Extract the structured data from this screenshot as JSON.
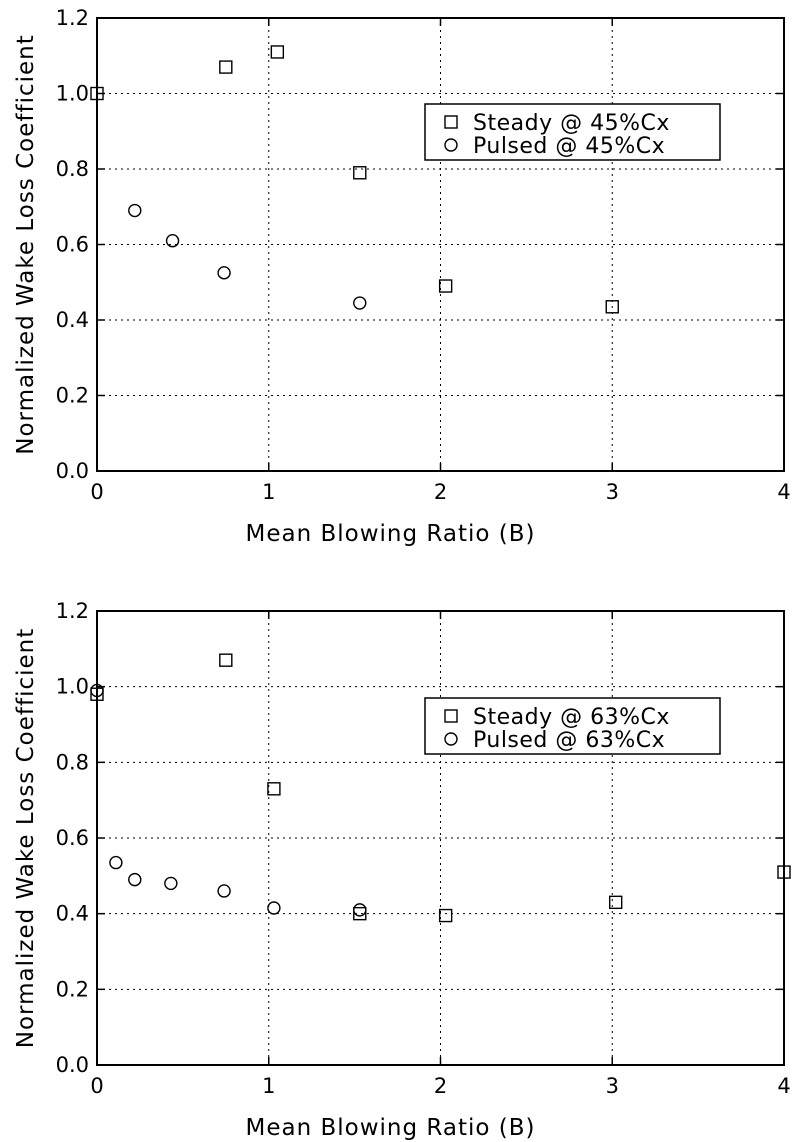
{
  "chart_data": [
    {
      "type": "scatter",
      "xlabel": "Mean Blowing Ratio (B)",
      "ylabel": "Normalized Wake Loss Coefficient",
      "xlim": [
        0,
        4
      ],
      "ylim": [
        0,
        1.2
      ],
      "xticks": [
        "0",
        "1",
        "2",
        "3",
        "4"
      ],
      "yticks": [
        "0.0",
        "0.2",
        "0.4",
        "0.6",
        "0.8",
        "1.0",
        "1.2"
      ],
      "grid": true,
      "legend_position": "top-right",
      "series": [
        {
          "name": "Steady @ 45%Cx",
          "marker": "square",
          "x": [
            0.0,
            0.75,
            1.05,
            1.53,
            2.03,
            3.0
          ],
          "y": [
            1.0,
            1.07,
            1.11,
            0.79,
            0.49,
            0.435
          ]
        },
        {
          "name": "Pulsed @ 45%Cx",
          "marker": "circle",
          "x": [
            0.22,
            0.44,
            0.74,
            1.53
          ],
          "y": [
            0.69,
            0.61,
            0.525,
            0.445
          ]
        }
      ]
    },
    {
      "type": "scatter",
      "xlabel": "Mean Blowing Ratio (B)",
      "ylabel": "Normalized Wake Loss Coefficient",
      "xlim": [
        0,
        4
      ],
      "ylim": [
        0,
        1.2
      ],
      "xticks": [
        "0",
        "1",
        "2",
        "3",
        "4"
      ],
      "yticks": [
        "0.0",
        "0.2",
        "0.4",
        "0.6",
        "0.8",
        "1.0",
        "1.2"
      ],
      "grid": true,
      "legend_position": "top-right",
      "series": [
        {
          "name": "Steady @ 63%Cx",
          "marker": "square",
          "x": [
            0.0,
            0.75,
            1.03,
            1.53,
            2.03,
            3.02,
            4.0
          ],
          "y": [
            0.98,
            1.07,
            0.73,
            0.4,
            0.395,
            0.43,
            0.51
          ]
        },
        {
          "name": "Pulsed @ 63%Cx",
          "marker": "circle",
          "x": [
            0.0,
            0.11,
            0.22,
            0.43,
            0.74,
            1.03,
            1.53
          ],
          "y": [
            0.99,
            0.535,
            0.49,
            0.48,
            0.46,
            0.415,
            0.41
          ]
        }
      ]
    }
  ]
}
